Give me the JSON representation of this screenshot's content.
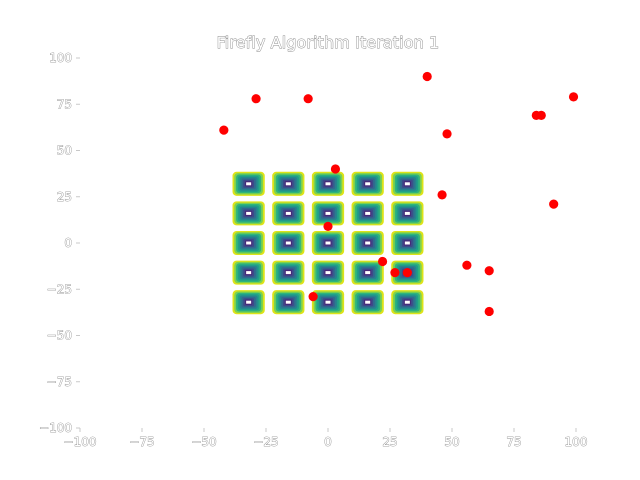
{
  "chart_data": {
    "type": "scatter",
    "title": "Firefly Algorithm Iteration 1",
    "xlabel": "",
    "ylabel": "",
    "xlim": [
      -100,
      100
    ],
    "ylim": [
      -100,
      100
    ],
    "x_ticks": [
      -100,
      -75,
      -50,
      -25,
      0,
      25,
      50,
      75,
      100
    ],
    "y_ticks": [
      -100,
      -75,
      -50,
      -25,
      0,
      25,
      50,
      75,
      100
    ],
    "x_tick_labels": [
      "−100",
      "−75",
      "−50",
      "−25",
      "0",
      "25",
      "50",
      "75",
      "100"
    ],
    "y_tick_labels": [
      "−100",
      "−75",
      "−50",
      "−25",
      "0",
      "25",
      "50",
      "75",
      "100"
    ],
    "grid": false,
    "contour": {
      "type": "filled-contour",
      "colormap": "viridis",
      "x_centers": [
        -32,
        -16,
        0,
        16,
        32
      ],
      "y_centers": [
        32,
        16,
        0,
        -16,
        -32
      ],
      "half_width": 6.5,
      "half_height": 6.5
    },
    "series": [
      {
        "marker": "circle",
        "color": "#ff0000",
        "points": [
          [
            -42,
            61
          ],
          [
            -29,
            78
          ],
          [
            -8,
            78
          ],
          [
            3,
            40
          ],
          [
            0,
            9
          ],
          [
            -6,
            -29
          ],
          [
            22,
            -10
          ],
          [
            27,
            -16
          ],
          [
            32,
            -16
          ],
          [
            40,
            90
          ],
          [
            48,
            59
          ],
          [
            46,
            26
          ],
          [
            56,
            -12
          ],
          [
            65,
            -15
          ],
          [
            65,
            -37
          ],
          [
            84,
            69
          ],
          [
            86,
            69
          ],
          [
            91,
            21
          ],
          [
            99,
            79
          ]
        ]
      }
    ]
  }
}
